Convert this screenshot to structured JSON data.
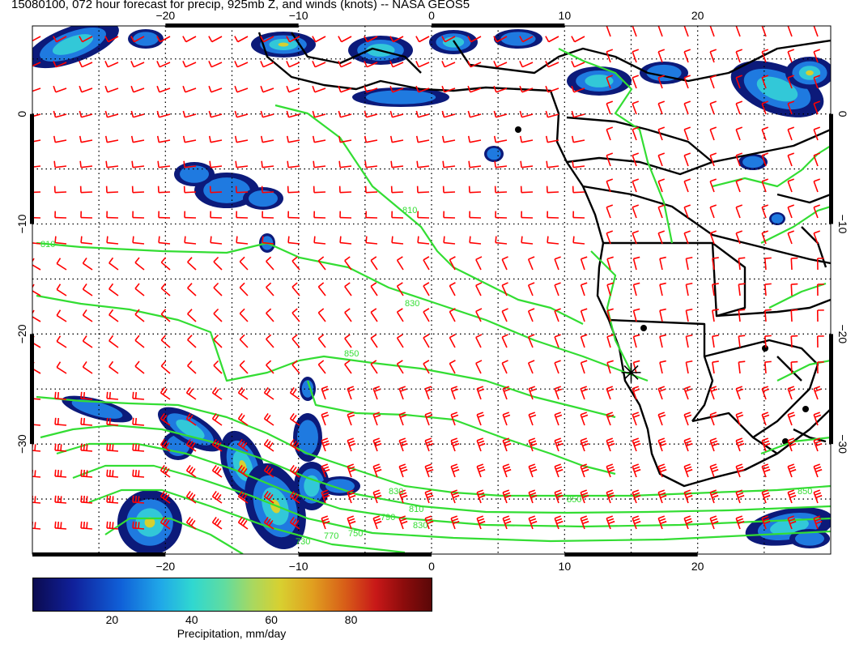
{
  "title": "15080100, 072 hour forecast for precip, 925mb Z, and winds (knots) -- NASA GEOS5",
  "map": {
    "lon_range": [
      -30,
      30
    ],
    "lat_range": [
      -40,
      8
    ],
    "lon_ticks": [
      {
        "value": -20,
        "label": "−20"
      },
      {
        "value": -10,
        "label": "−10"
      },
      {
        "value": 0,
        "label": "0"
      },
      {
        "value": 10,
        "label": "10"
      },
      {
        "value": 20,
        "label": "20"
      }
    ],
    "lat_ticks": [
      {
        "value": 0,
        "label": "0"
      },
      {
        "value": -10,
        "label": "−10"
      },
      {
        "value": -20,
        "label": "−20"
      },
      {
        "value": -30,
        "label": "−30"
      }
    ],
    "grid": "dotted",
    "contour_labels": [
      "810",
      "830",
      "850",
      "850",
      "810",
      "850",
      "830",
      "810",
      "830",
      "790",
      "770",
      "750",
      "730"
    ],
    "station_marker": {
      "lon": 15,
      "lat": -23.5
    }
  },
  "colorbar": {
    "title": "Precipitation, mm/day",
    "labels": [
      "20",
      "40",
      "60",
      "80"
    ],
    "range": [
      0,
      100
    ]
  },
  "colors": {
    "contour": "#33dd33",
    "wind_barb": "#ff0000",
    "coast": "#000000"
  }
}
